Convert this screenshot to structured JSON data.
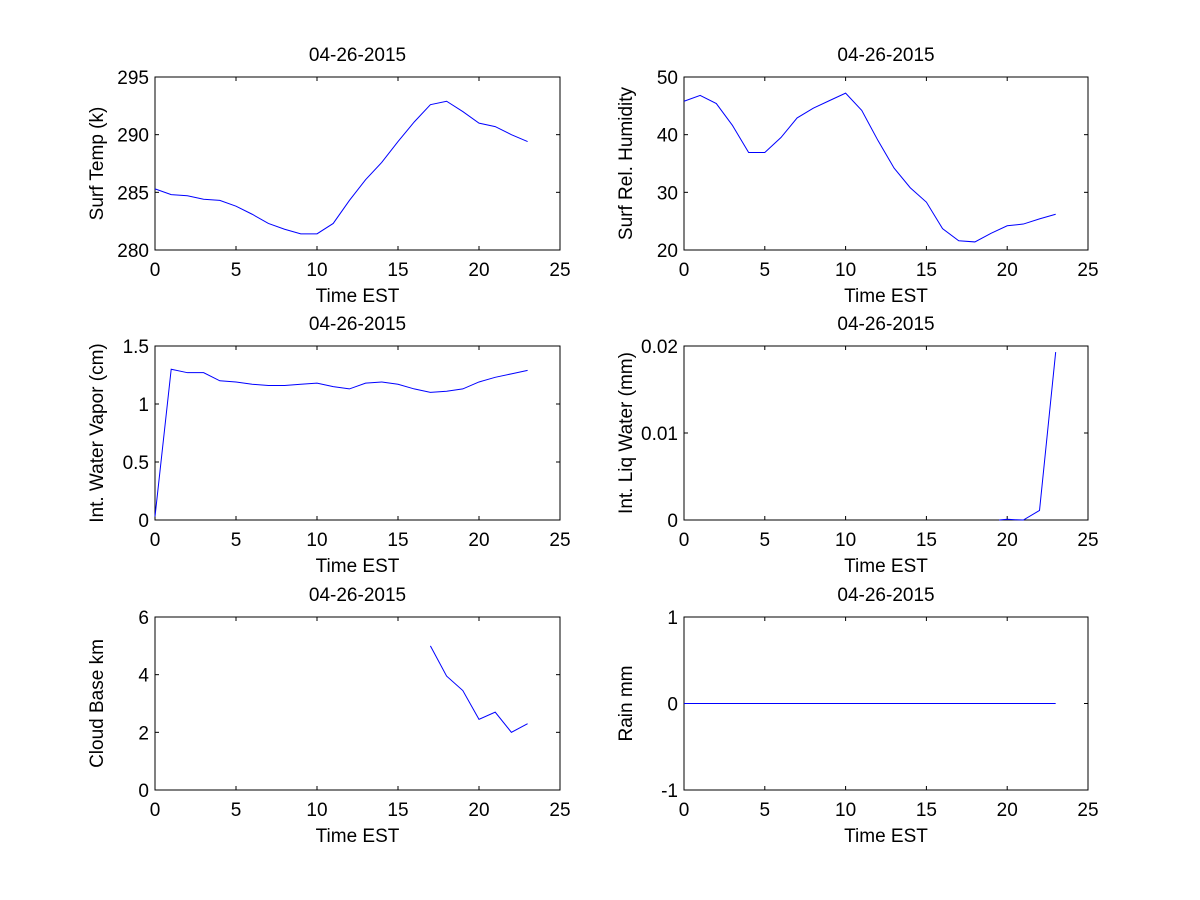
{
  "chart_data": [
    {
      "type": "line",
      "title": "04-26-2015",
      "xlabel": "Time EST",
      "ylabel": "Surf Temp (k)",
      "xlim": [
        0,
        25
      ],
      "ylim": [
        280,
        295
      ],
      "xticks": [
        "0",
        "5",
        "10",
        "15",
        "20",
        "25"
      ],
      "yticks": [
        "280",
        "285",
        "290",
        "295"
      ],
      "series": [
        {
          "name": "Surf Temp",
          "color": "#0000ff",
          "x": [
            0,
            1,
            2,
            3,
            4,
            5,
            6,
            7,
            8,
            9,
            10,
            11,
            12,
            13,
            14,
            15,
            16,
            17,
            18,
            19,
            20,
            21,
            22,
            23
          ],
          "y": [
            285.3,
            284.8,
            284.7,
            284.4,
            284.3,
            283.8,
            283.1,
            282.3,
            281.8,
            281.4,
            281.4,
            282.3,
            284.3,
            286.1,
            287.6,
            289.4,
            291.1,
            292.6,
            292.9,
            292.0,
            291.0,
            290.7,
            290.0,
            289.4
          ]
        }
      ]
    },
    {
      "type": "line",
      "title": "04-26-2015",
      "xlabel": "Time EST",
      "ylabel": "Surf Rel. Humidity",
      "xlim": [
        0,
        25
      ],
      "ylim": [
        20,
        50
      ],
      "xticks": [
        "0",
        "5",
        "10",
        "15",
        "20",
        "25"
      ],
      "yticks": [
        "20",
        "30",
        "40",
        "50"
      ],
      "series": [
        {
          "name": "Surf Rel. Humidity",
          "color": "#0000ff",
          "x": [
            0,
            1,
            2,
            3,
            4,
            5,
            6,
            7,
            8,
            9,
            10,
            11,
            12,
            13,
            14,
            15,
            16,
            17,
            18,
            19,
            20,
            21,
            22,
            23
          ],
          "y": [
            45.8,
            46.8,
            45.4,
            41.6,
            36.9,
            36.9,
            39.5,
            42.9,
            44.6,
            45.9,
            47.2,
            44.2,
            39.0,
            34.2,
            30.8,
            28.3,
            23.7,
            21.6,
            21.4,
            22.9,
            24.2,
            24.5,
            25.4,
            26.2
          ]
        }
      ]
    },
    {
      "type": "line",
      "title": "04-26-2015",
      "xlabel": "Time EST",
      "ylabel": "Int. Water Vapor (cm)",
      "xlim": [
        0,
        25
      ],
      "ylim": [
        0,
        1.5
      ],
      "xticks": [
        "0",
        "5",
        "10",
        "15",
        "20",
        "25"
      ],
      "yticks": [
        "0",
        "0.5",
        "1",
        "1.5"
      ],
      "series": [
        {
          "name": "Int. Water Vapor",
          "color": "#0000ff",
          "x": [
            0,
            1,
            2,
            3,
            4,
            5,
            6,
            7,
            8,
            9,
            10,
            11,
            12,
            13,
            14,
            15,
            16,
            17,
            18,
            19,
            20,
            21,
            22,
            23
          ],
          "y": [
            0.03,
            1.3,
            1.27,
            1.27,
            1.2,
            1.19,
            1.17,
            1.16,
            1.16,
            1.17,
            1.18,
            1.15,
            1.13,
            1.18,
            1.19,
            1.17,
            1.13,
            1.1,
            1.11,
            1.13,
            1.19,
            1.23,
            1.26,
            1.29
          ]
        }
      ]
    },
    {
      "type": "line",
      "title": "04-26-2015",
      "xlabel": "Time EST",
      "ylabel": "Int. Liq Water (mm)",
      "xlim": [
        0,
        25
      ],
      "ylim": [
        0,
        0.02
      ],
      "xticks": [
        "0",
        "5",
        "10",
        "15",
        "20",
        "25"
      ],
      "yticks": [
        "0",
        "0.01",
        "0.02"
      ],
      "series": [
        {
          "name": "Int. Liq Water",
          "color": "#0000ff",
          "x": [
            19.5,
            20,
            20.5,
            21,
            22,
            23
          ],
          "y": [
            0,
            8e-05,
            3e-05,
            0,
            0.0011,
            0.0193
          ]
        }
      ]
    },
    {
      "type": "line",
      "title": "04-26-2015",
      "xlabel": "Time EST",
      "ylabel": "Cloud Base km",
      "xlim": [
        0,
        25
      ],
      "ylim": [
        0,
        6
      ],
      "xticks": [
        "0",
        "5",
        "10",
        "15",
        "20",
        "25"
      ],
      "yticks": [
        "0",
        "2",
        "4",
        "6"
      ],
      "series": [
        {
          "name": "Cloud Base",
          "color": "#0000ff",
          "x": [
            17,
            18,
            19,
            20,
            21,
            22,
            23
          ],
          "y": [
            5.0,
            3.95,
            3.45,
            2.45,
            2.7,
            2.0,
            2.3
          ]
        }
      ]
    },
    {
      "type": "line",
      "title": "04-26-2015",
      "xlabel": "Time EST",
      "ylabel": "Rain mm",
      "xlim": [
        0,
        25
      ],
      "ylim": [
        -1,
        1
      ],
      "xticks": [
        "0",
        "5",
        "10",
        "15",
        "20",
        "25"
      ],
      "yticks": [
        "-1",
        "0",
        "1"
      ],
      "series": [
        {
          "name": "Rain",
          "color": "#0000ff",
          "x": [
            0,
            23
          ],
          "y": [
            0,
            0
          ]
        }
      ]
    }
  ]
}
